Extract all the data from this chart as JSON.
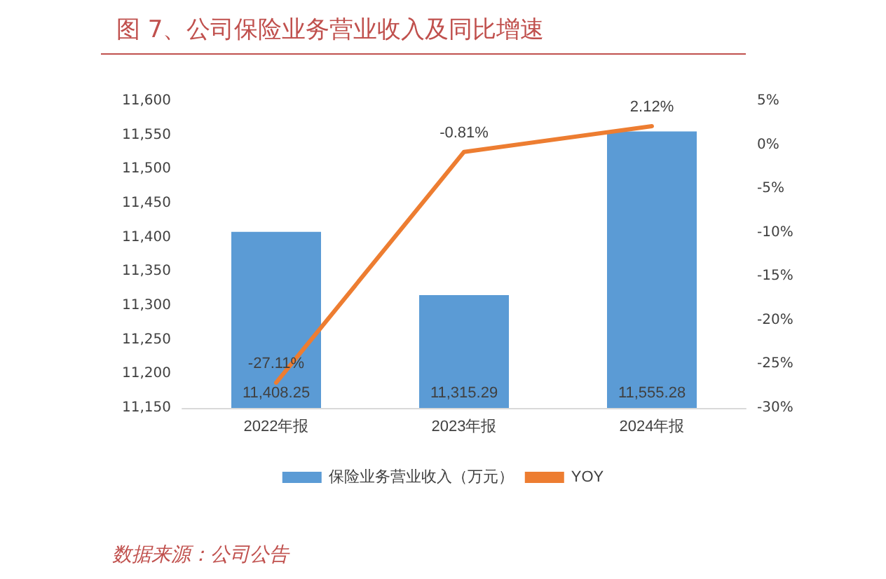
{
  "chart_data": {
    "type": "bar",
    "title": "图 7、公司保险业务营业收入及同比增速",
    "categories": [
      "2022年报",
      "2023年报",
      "2024年报"
    ],
    "series": [
      {
        "name": "保险业务营业收入（万元）",
        "color": "#5b9bd5",
        "values": [
          11408.25,
          11315.29,
          11555.28
        ],
        "value_labels": [
          "11,408.25",
          "11,315.29",
          "11,555.28"
        ]
      },
      {
        "name": "YOY",
        "type": "line",
        "axis": "y2",
        "color": "#ed7d31",
        "values": [
          -27.11,
          -0.81,
          2.12
        ],
        "value_labels": [
          "-27.11%",
          "-0.81%",
          "2.12%"
        ]
      }
    ],
    "ylim": [
      11150,
      11600
    ],
    "yticks": [
      {
        "value": 11150,
        "label": "11,150"
      },
      {
        "value": 11200,
        "label": "11,200"
      },
      {
        "value": 11250,
        "label": "11,250"
      },
      {
        "value": 11300,
        "label": "11,300"
      },
      {
        "value": 11350,
        "label": "11,350"
      },
      {
        "value": 11400,
        "label": "11,400"
      },
      {
        "value": 11450,
        "label": "11,450"
      },
      {
        "value": 11500,
        "label": "11,500"
      },
      {
        "value": 11550,
        "label": "11,550"
      },
      {
        "value": 11600,
        "label": "11,600"
      }
    ],
    "y2lim": [
      -30,
      5
    ],
    "y2ticks": [
      {
        "value": -30,
        "label": "-30%"
      },
      {
        "value": -25,
        "label": "-25%"
      },
      {
        "value": -20,
        "label": "-20%"
      },
      {
        "value": -15,
        "label": "-15%"
      },
      {
        "value": -10,
        "label": "-10%"
      },
      {
        "value": -5,
        "label": "-5%"
      },
      {
        "value": 0,
        "label": "0%"
      },
      {
        "value": 5,
        "label": "5%"
      }
    ],
    "grid": false,
    "legend": "bottom",
    "marker": "none",
    "line_style": "solid",
    "annotations": [
      "数据来源：公司公告"
    ]
  }
}
